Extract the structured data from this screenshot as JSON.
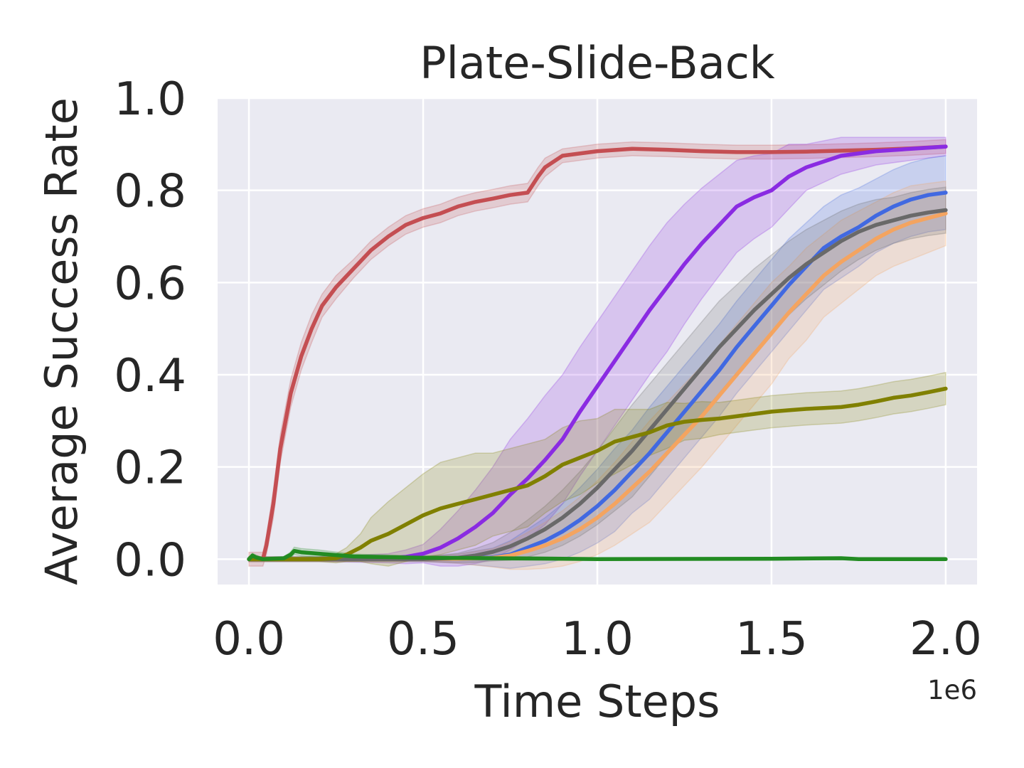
{
  "chart_data": {
    "type": "line",
    "title": "Plate-Slide-Back",
    "xlabel": "Time Steps",
    "ylabel": "Average Success Rate",
    "x_offset_label": "1e6",
    "xlim": [
      -0.09,
      2.09
    ],
    "ylim": [
      -0.055,
      1.0
    ],
    "xticks": [
      0.0,
      0.5,
      1.0,
      1.5,
      2.0
    ],
    "xtick_labels": [
      "0.0",
      "0.5",
      "1.0",
      "1.5",
      "2.0"
    ],
    "yticks": [
      0.0,
      0.2,
      0.4,
      0.6,
      0.8,
      1.0
    ],
    "ytick_labels": [
      "0.0",
      "0.2",
      "0.4",
      "0.6",
      "0.8",
      "1.0"
    ],
    "grid": true,
    "legend": "none",
    "background_color": "#eaeaf2",
    "grid_color": "#ffffff",
    "series": [
      {
        "color": "#c44e52",
        "x": [
          0.0,
          0.03,
          0.04,
          0.05,
          0.07,
          0.09,
          0.1,
          0.12,
          0.15,
          0.18,
          0.21,
          0.25,
          0.3,
          0.35,
          0.4,
          0.45,
          0.5,
          0.55,
          0.6,
          0.65,
          0.7,
          0.75,
          0.8,
          0.83,
          0.85,
          0.9,
          1.0,
          1.1,
          1.2,
          1.3,
          1.4,
          1.5,
          1.6,
          1.7,
          1.8,
          1.9,
          2.0
        ],
        "y": [
          0.0,
          0.0,
          0.0,
          0.03,
          0.12,
          0.24,
          0.28,
          0.36,
          0.44,
          0.5,
          0.55,
          0.59,
          0.63,
          0.67,
          0.7,
          0.725,
          0.74,
          0.75,
          0.765,
          0.775,
          0.782,
          0.79,
          0.795,
          0.83,
          0.85,
          0.875,
          0.885,
          0.89,
          0.888,
          0.885,
          0.883,
          0.883,
          0.884,
          0.886,
          0.888,
          0.891,
          0.895
        ],
        "band": [
          0.015,
          0.015,
          0.015,
          0.02,
          0.03,
          0.03,
          0.03,
          0.03,
          0.03,
          0.03,
          0.025,
          0.025,
          0.02,
          0.02,
          0.02,
          0.02,
          0.02,
          0.02,
          0.02,
          0.02,
          0.02,
          0.02,
          0.02,
          0.02,
          0.02,
          0.015,
          0.015,
          0.015,
          0.015,
          0.015,
          0.015,
          0.015,
          0.015,
          0.015,
          0.015,
          0.015,
          0.015
        ]
      },
      {
        "color": "#8a2be2",
        "x": [
          0.0,
          0.2,
          0.4,
          0.45,
          0.5,
          0.55,
          0.6,
          0.65,
          0.7,
          0.75,
          0.8,
          0.85,
          0.9,
          0.95,
          1.0,
          1.05,
          1.1,
          1.15,
          1.2,
          1.25,
          1.3,
          1.35,
          1.4,
          1.45,
          1.5,
          1.55,
          1.6,
          1.7,
          1.8,
          1.9,
          2.0
        ],
        "y": [
          0.0,
          0.0,
          0.002,
          0.005,
          0.012,
          0.025,
          0.045,
          0.07,
          0.1,
          0.14,
          0.175,
          0.215,
          0.26,
          0.32,
          0.375,
          0.43,
          0.485,
          0.54,
          0.59,
          0.64,
          0.685,
          0.725,
          0.765,
          0.785,
          0.8,
          0.83,
          0.85,
          0.875,
          0.885,
          0.89,
          0.895
        ],
        "band": [
          0.005,
          0.005,
          0.01,
          0.015,
          0.02,
          0.04,
          0.06,
          0.08,
          0.1,
          0.12,
          0.13,
          0.14,
          0.14,
          0.14,
          0.14,
          0.14,
          0.14,
          0.14,
          0.14,
          0.13,
          0.12,
          0.11,
          0.1,
          0.09,
          0.08,
          0.07,
          0.05,
          0.04,
          0.03,
          0.025,
          0.02
        ]
      },
      {
        "color": "#4169e1",
        "x": [
          0.0,
          0.5,
          0.6,
          0.7,
          0.75,
          0.8,
          0.85,
          0.9,
          0.95,
          1.0,
          1.05,
          1.1,
          1.15,
          1.2,
          1.25,
          1.3,
          1.35,
          1.4,
          1.45,
          1.5,
          1.55,
          1.6,
          1.65,
          1.7,
          1.75,
          1.8,
          1.85,
          1.9,
          1.95,
          2.0
        ],
        "y": [
          0.0,
          0.0,
          0.001,
          0.004,
          0.01,
          0.025,
          0.04,
          0.06,
          0.085,
          0.115,
          0.15,
          0.19,
          0.23,
          0.275,
          0.32,
          0.365,
          0.41,
          0.46,
          0.505,
          0.55,
          0.595,
          0.635,
          0.675,
          0.7,
          0.72,
          0.745,
          0.765,
          0.78,
          0.79,
          0.795
        ],
        "band": [
          0.005,
          0.005,
          0.01,
          0.02,
          0.03,
          0.04,
          0.05,
          0.06,
          0.07,
          0.08,
          0.09,
          0.09,
          0.1,
          0.1,
          0.1,
          0.1,
          0.1,
          0.1,
          0.1,
          0.1,
          0.1,
          0.095,
          0.09,
          0.09,
          0.085,
          0.08,
          0.08,
          0.08,
          0.08,
          0.08
        ]
      },
      {
        "color": "#f4a460",
        "x": [
          0.0,
          0.5,
          0.6,
          0.7,
          0.75,
          0.8,
          0.85,
          0.9,
          0.95,
          1.0,
          1.05,
          1.1,
          1.15,
          1.2,
          1.25,
          1.3,
          1.35,
          1.4,
          1.45,
          1.5,
          1.55,
          1.6,
          1.65,
          1.7,
          1.75,
          1.8,
          1.85,
          1.9,
          1.95,
          2.0
        ],
        "y": [
          0.0,
          0.0,
          0.001,
          0.003,
          0.008,
          0.018,
          0.03,
          0.045,
          0.065,
          0.09,
          0.12,
          0.155,
          0.19,
          0.23,
          0.27,
          0.31,
          0.355,
          0.4,
          0.445,
          0.49,
          0.535,
          0.575,
          0.615,
          0.645,
          0.67,
          0.695,
          0.715,
          0.73,
          0.74,
          0.75
        ],
        "band": [
          0.005,
          0.005,
          0.01,
          0.02,
          0.03,
          0.04,
          0.05,
          0.06,
          0.07,
          0.08,
          0.09,
          0.1,
          0.11,
          0.11,
          0.11,
          0.11,
          0.11,
          0.11,
          0.11,
          0.11,
          0.1,
          0.1,
          0.09,
          0.09,
          0.085,
          0.08,
          0.08,
          0.08,
          0.075,
          0.07
        ]
      },
      {
        "color": "#696969",
        "x": [
          0.0,
          0.5,
          0.6,
          0.65,
          0.7,
          0.75,
          0.8,
          0.85,
          0.9,
          0.95,
          1.0,
          1.05,
          1.1,
          1.15,
          1.2,
          1.25,
          1.3,
          1.35,
          1.4,
          1.45,
          1.5,
          1.55,
          1.6,
          1.65,
          1.7,
          1.75,
          1.8,
          1.85,
          1.9,
          1.95,
          2.0
        ],
        "y": [
          0.0,
          0.0,
          0.003,
          0.008,
          0.016,
          0.028,
          0.045,
          0.065,
          0.09,
          0.12,
          0.155,
          0.195,
          0.235,
          0.28,
          0.325,
          0.37,
          0.415,
          0.46,
          0.5,
          0.54,
          0.575,
          0.61,
          0.64,
          0.665,
          0.69,
          0.71,
          0.725,
          0.735,
          0.745,
          0.752,
          0.757
        ],
        "band": [
          0.005,
          0.005,
          0.01,
          0.015,
          0.02,
          0.03,
          0.04,
          0.05,
          0.06,
          0.07,
          0.08,
          0.09,
          0.1,
          0.1,
          0.1,
          0.1,
          0.1,
          0.1,
          0.095,
          0.09,
          0.085,
          0.08,
          0.075,
          0.07,
          0.065,
          0.06,
          0.055,
          0.05,
          0.05,
          0.05,
          0.05
        ]
      },
      {
        "color": "#808000",
        "x": [
          0.0,
          0.2,
          0.25,
          0.28,
          0.32,
          0.35,
          0.4,
          0.45,
          0.5,
          0.55,
          0.6,
          0.65,
          0.7,
          0.75,
          0.8,
          0.85,
          0.9,
          0.95,
          1.0,
          1.05,
          1.1,
          1.15,
          1.2,
          1.25,
          1.3,
          1.35,
          1.4,
          1.45,
          1.5,
          1.55,
          1.6,
          1.65,
          1.7,
          1.75,
          1.8,
          1.85,
          1.9,
          1.95,
          2.0
        ],
        "y": [
          0.0,
          0.0,
          0.002,
          0.01,
          0.025,
          0.04,
          0.055,
          0.075,
          0.095,
          0.11,
          0.12,
          0.13,
          0.14,
          0.15,
          0.16,
          0.18,
          0.205,
          0.22,
          0.235,
          0.255,
          0.265,
          0.275,
          0.29,
          0.298,
          0.302,
          0.305,
          0.31,
          0.315,
          0.32,
          0.323,
          0.326,
          0.328,
          0.33,
          0.335,
          0.342,
          0.35,
          0.355,
          0.362,
          0.37
        ],
        "band": [
          0.005,
          0.005,
          0.01,
          0.015,
          0.03,
          0.05,
          0.07,
          0.08,
          0.09,
          0.1,
          0.1,
          0.1,
          0.09,
          0.09,
          0.09,
          0.08,
          0.08,
          0.08,
          0.07,
          0.07,
          0.06,
          0.05,
          0.05,
          0.04,
          0.04,
          0.035,
          0.035,
          0.035,
          0.035,
          0.035,
          0.035,
          0.035,
          0.035,
          0.035,
          0.035,
          0.035,
          0.035,
          0.035,
          0.035
        ]
      },
      {
        "color": "#228b22",
        "x": [
          0.0,
          0.01,
          0.02,
          0.04,
          0.1,
          0.12,
          0.13,
          0.15,
          0.2,
          0.3,
          0.5,
          0.7,
          0.9,
          1.0,
          1.5,
          1.7,
          1.75,
          2.0
        ],
        "y": [
          0.0,
          0.008,
          0.004,
          0.0,
          0.002,
          0.01,
          0.018,
          0.015,
          0.012,
          0.006,
          0.003,
          0.002,
          0.001,
          0.0,
          0.001,
          0.002,
          0.0,
          0.0
        ],
        "band": [
          0.003,
          0.005,
          0.005,
          0.003,
          0.003,
          0.006,
          0.008,
          0.008,
          0.008,
          0.005,
          0.004,
          0.004,
          0.003,
          0.002,
          0.002,
          0.003,
          0.002,
          0.002
        ]
      }
    ]
  }
}
